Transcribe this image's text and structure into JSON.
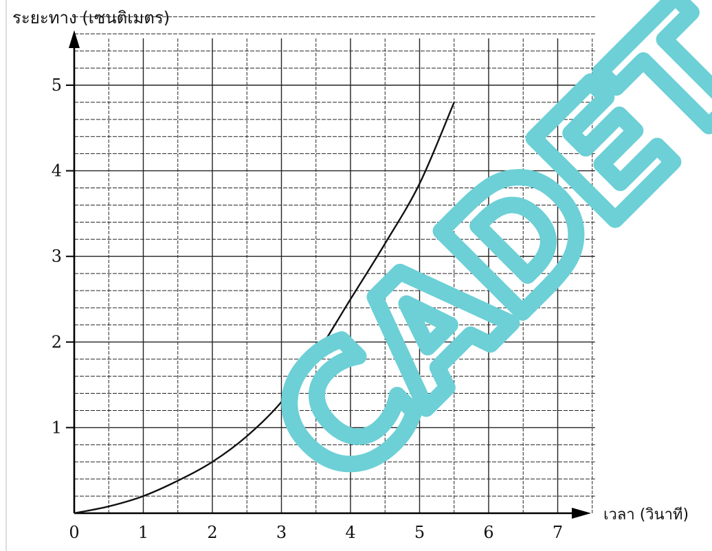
{
  "chart_data": {
    "type": "line",
    "ylabel": "ระยะทาง (เซนติเมตร)",
    "xlabel": "เวลา (วินาที)",
    "xlim": [
      0,
      7.5
    ],
    "ylim": [
      0,
      5.5
    ],
    "x_ticks": [
      "0",
      "1",
      "2",
      "3",
      "4",
      "5",
      "6",
      "7"
    ],
    "y_ticks": [
      "1",
      "2",
      "3",
      "4",
      "5"
    ],
    "grid": true,
    "minor_grid": true,
    "series": [
      {
        "x": [
          0,
          0.5,
          1,
          1.5,
          2,
          2.5,
          3,
          3.5,
          4,
          4.5,
          5,
          5.5
        ],
        "y": [
          0,
          0.08,
          0.2,
          0.38,
          0.6,
          0.9,
          1.3,
          1.85,
          2.5,
          3.15,
          3.85,
          4.8
        ],
        "color": "#111111"
      }
    ]
  },
  "watermark": {
    "text": "CADET",
    "color": "#6cd0d6"
  }
}
